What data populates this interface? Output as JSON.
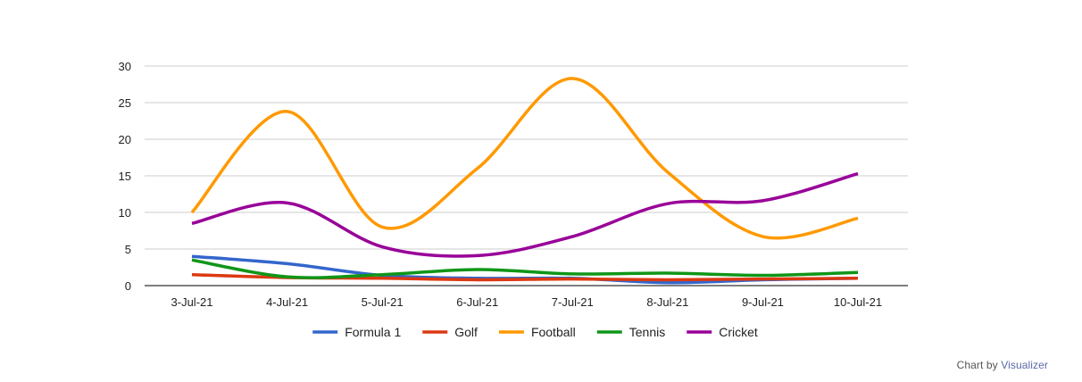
{
  "chart_data": {
    "type": "line",
    "categories": [
      "3-Jul-21",
      "4-Jul-21",
      "5-Jul-21",
      "6-Jul-21",
      "7-Jul-21",
      "8-Jul-21",
      "9-Jul-21",
      "10-Jul-21"
    ],
    "ylim": [
      0,
      30
    ],
    "yticks": [
      "0",
      "5",
      "10",
      "15",
      "20",
      "25",
      "30"
    ],
    "grid": true,
    "legend_position": "bottom",
    "series": [
      {
        "name": "Formula 1",
        "color": "#3366cc",
        "values": [
          4,
          3,
          1.4,
          1,
          1,
          0.4,
          0.8,
          1
        ]
      },
      {
        "name": "Golf",
        "color": "#dc3912",
        "values": [
          1.5,
          1.1,
          1,
          0.8,
          0.9,
          0.8,
          0.9,
          1
        ]
      },
      {
        "name": "Football",
        "color": "#ff9900",
        "values": [
          10,
          23.8,
          8,
          16,
          28.3,
          15.5,
          6.7,
          9.2
        ]
      },
      {
        "name": "Tennis",
        "color": "#109618",
        "values": [
          3.5,
          1.2,
          1.5,
          2.2,
          1.6,
          1.7,
          1.4,
          1.8
        ]
      },
      {
        "name": "Cricket",
        "color": "#990099",
        "values": [
          8.5,
          11.3,
          5.3,
          4.1,
          6.7,
          11.2,
          11.6,
          15.3
        ]
      }
    ]
  },
  "credit": {
    "prefix": "Chart by",
    "link_label": "Visualizer"
  }
}
